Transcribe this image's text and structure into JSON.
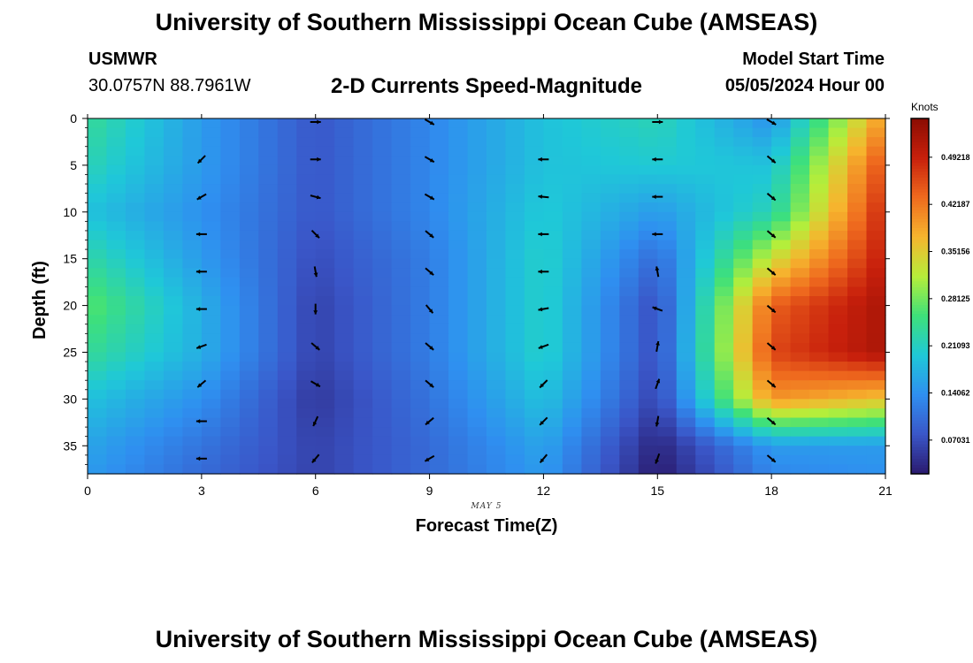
{
  "header": {
    "title_top": "University of Southern Mississippi Ocean Cube (AMSEAS)",
    "title_bottom": "University of Southern Mississippi Ocean Cube (AMSEAS)",
    "station": "USMWR",
    "coordinates": "30.0757N  88.7961W",
    "subtitle": "2-D Currents Speed-Magnitude",
    "model_start_label": "Model Start Time",
    "model_start_value": "05/05/2024 Hour 00"
  },
  "chart_data": {
    "type": "heatmap",
    "title": "2-D Currents Speed-Magnitude",
    "xlabel": "Forecast Time(Z)",
    "ylabel": "Depth (ft)",
    "date_annotation": "MAY 5",
    "xlim": [
      0,
      21
    ],
    "ylim": [
      0,
      38
    ],
    "x_ticks": [
      "0",
      "3",
      "6",
      "9",
      "12",
      "15",
      "18",
      "21"
    ],
    "y_ticks": [
      "0",
      "5",
      "10",
      "15",
      "20",
      "25",
      "30",
      "35"
    ],
    "colorbar": {
      "title": "Knots",
      "ticks": [
        "0.07031",
        "0.14062",
        "0.21093",
        "0.28125",
        "0.35156",
        "0.42187",
        "0.49218"
      ],
      "range": [
        0.02,
        0.55
      ],
      "stops": [
        "#2a1a6e",
        "#3a56c8",
        "#2f8ff0",
        "#1fc8d8",
        "#3ee07a",
        "#b6ee3a",
        "#f6b52e",
        "#ef6a1e",
        "#c8200c",
        "#8a0c02"
      ]
    },
    "times": [
      0,
      3,
      6,
      9,
      12,
      15,
      18,
      21
    ],
    "depths": [
      0,
      5,
      10,
      15,
      20,
      25,
      30,
      35,
      38
    ],
    "speed_knots": [
      [
        0.24,
        0.15,
        0.08,
        0.13,
        0.19,
        0.22,
        0.14,
        0.4
      ],
      [
        0.22,
        0.15,
        0.08,
        0.13,
        0.19,
        0.2,
        0.19,
        0.46
      ],
      [
        0.19,
        0.14,
        0.08,
        0.13,
        0.2,
        0.15,
        0.22,
        0.49
      ],
      [
        0.23,
        0.15,
        0.07,
        0.12,
        0.21,
        0.1,
        0.33,
        0.5
      ],
      [
        0.27,
        0.17,
        0.06,
        0.12,
        0.21,
        0.07,
        0.44,
        0.52
      ],
      [
        0.24,
        0.17,
        0.06,
        0.12,
        0.21,
        0.07,
        0.46,
        0.52
      ],
      [
        0.19,
        0.14,
        0.05,
        0.11,
        0.19,
        0.06,
        0.4,
        0.36
      ],
      [
        0.16,
        0.11,
        0.06,
        0.1,
        0.16,
        0.03,
        0.15,
        0.15
      ],
      [
        0.15,
        0.1,
        0.06,
        0.1,
        0.15,
        0.02,
        0.13,
        0.14
      ]
    ],
    "vectors": [
      {
        "t": 3,
        "depths": [
          4,
          8,
          12,
          16,
          20,
          24,
          28,
          32,
          36
        ],
        "angles": [
          135,
          150,
          180,
          180,
          180,
          160,
          140,
          180,
          180
        ]
      },
      {
        "t": 6,
        "depths": [
          0,
          4,
          8,
          12,
          16,
          20,
          24,
          28,
          32,
          36
        ],
        "angles": [
          0,
          0,
          15,
          45,
          80,
          90,
          40,
          30,
          115,
          130
        ]
      },
      {
        "t": 9,
        "depths": [
          0,
          4,
          8,
          12,
          16,
          20,
          24,
          28,
          32,
          36
        ],
        "angles": [
          30,
          30,
          30,
          40,
          40,
          50,
          40,
          40,
          140,
          150
        ]
      },
      {
        "t": 12,
        "depths": [
          4,
          8,
          12,
          16,
          20,
          24,
          28,
          32,
          36
        ],
        "angles": [
          180,
          185,
          180,
          180,
          170,
          160,
          135,
          135,
          130
        ]
      },
      {
        "t": 15,
        "depths": [
          0,
          4,
          8,
          12,
          16,
          20,
          24,
          28,
          32,
          36
        ],
        "angles": [
          0,
          180,
          180,
          180,
          260,
          200,
          280,
          290,
          100,
          110
        ]
      },
      {
        "t": 18,
        "depths": [
          0,
          4,
          8,
          12,
          16,
          20,
          24,
          28,
          32,
          36
        ],
        "angles": [
          30,
          40,
          40,
          40,
          40,
          40,
          40,
          40,
          40,
          40
        ]
      }
    ]
  }
}
